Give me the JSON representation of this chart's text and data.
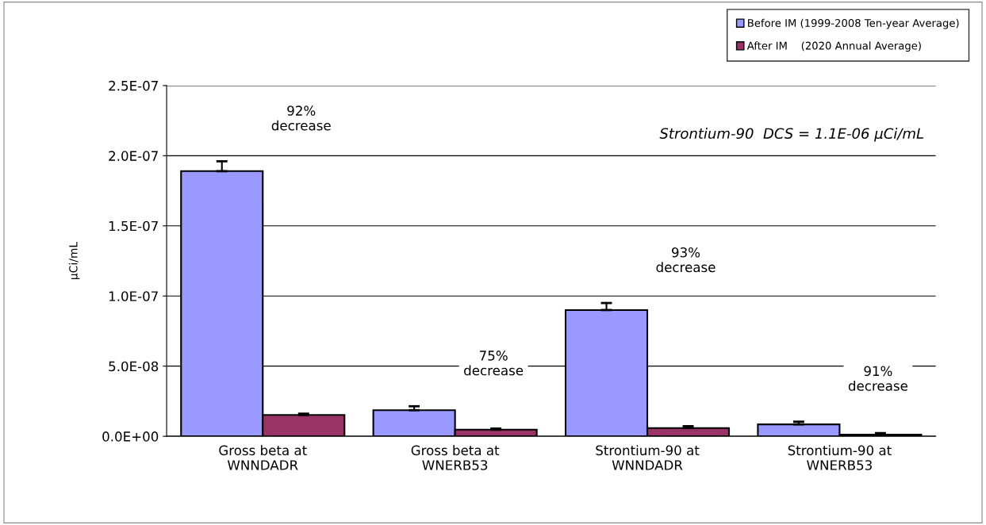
{
  "chart_data": {
    "type": "bar",
    "ylabel": "µCi/mL",
    "categories": [
      "Gross beta at\nWNNDADR",
      "Gross beta at\nWNERB53",
      "Strontium-90 at\nWNNDADR",
      "Strontium-90 at\nWNERB53"
    ],
    "series": [
      {
        "name": "Before IM (1999-2008 Ten-year Average)",
        "color": "#9999ff",
        "values": [
          1.89e-07,
          1.86e-08,
          9e-08,
          8.5e-09
        ],
        "errors": [
          [
            1.89e-07,
            1.96e-07
          ],
          [
            1.86e-08,
            2.14e-08
          ],
          [
            9e-08,
            9.5e-08
          ],
          [
            8.5e-09,
            1.04e-08
          ]
        ]
      },
      {
        "name": "After IM    (2020 Annual Average)",
        "color": "#993366",
        "values": [
          1.52e-08,
          4.7e-09,
          5.9e-09,
          1.2e-09
        ],
        "errors": [
          [
            1.52e-08,
            1.61e-08
          ],
          [
            4.7e-09,
            5.5e-09
          ],
          [
            5.9e-09,
            7.2e-09
          ],
          [
            1.2e-09,
            2.2e-09
          ]
        ]
      }
    ],
    "ylim": [
      0,
      2.5e-07
    ],
    "yticks": [
      {
        "value": 0,
        "label": "0.0E+00"
      },
      {
        "value": 5e-08,
        "label": "5.0E-08"
      },
      {
        "value": 1e-07,
        "label": "1.0E-07"
      },
      {
        "value": 1.5e-07,
        "label": "1.5E-07"
      },
      {
        "value": 2e-07,
        "label": "2.0E-07"
      },
      {
        "value": 2.5e-07,
        "label": "2.5E-07"
      }
    ],
    "grid": "y",
    "legend": "top right",
    "annotations": [
      "92%\ndecrease",
      "75%\ndecrease",
      "93%\ndecrease",
      "91%\ndecrease",
      "Strontium-90  DCS = 1.1E-06 µCi/mL"
    ]
  }
}
